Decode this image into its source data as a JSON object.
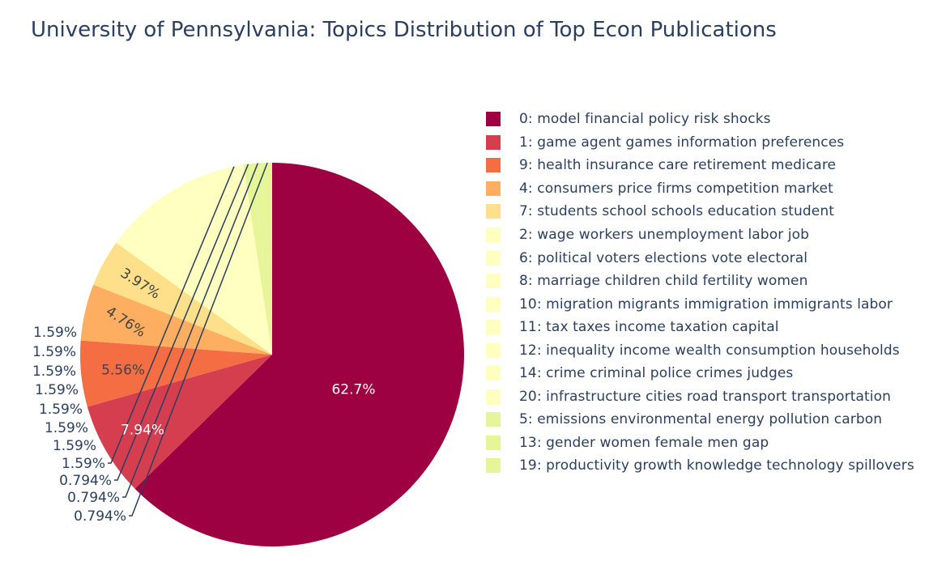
{
  "chart_data": {
    "type": "pie",
    "title": "University of Pennsylvania: Topics Distribution of Top Econ Publications",
    "slices": [
      {
        "label": "0: model financial policy risk shocks",
        "value": 62.7,
        "text": "62.7%",
        "color": "#9e0142"
      },
      {
        "label": "1: game agent games information preferences",
        "value": 7.94,
        "text": "7.94%",
        "color": "#d53e4f"
      },
      {
        "label": "9: health insurance care retirement medicare",
        "value": 5.56,
        "text": "5.56%",
        "color": "#f46d43"
      },
      {
        "label": "4: consumers price firms competition market",
        "value": 4.76,
        "text": "4.76%",
        "color": "#fdae61"
      },
      {
        "label": "7: students school schools education student",
        "value": 3.97,
        "text": "3.97%",
        "color": "#fee08b"
      },
      {
        "label": "2: wage workers unemployment labor job",
        "value": 1.59,
        "text": "1.59%",
        "color": "#ffffbf"
      },
      {
        "label": "6: political voters elections vote electoral",
        "value": 1.59,
        "text": "1.59%",
        "color": "#ffffbf"
      },
      {
        "label": "8: marriage children child fertility women",
        "value": 1.59,
        "text": "1.59%",
        "color": "#ffffbf"
      },
      {
        "label": "10: migration migrants immigration immigrants labor",
        "value": 1.59,
        "text": "1.59%",
        "color": "#ffffbf"
      },
      {
        "label": "11: tax taxes income taxation capital",
        "value": 1.59,
        "text": "1.59%",
        "color": "#ffffbf"
      },
      {
        "label": "12: inequality income wealth consumption households",
        "value": 1.59,
        "text": "1.59%",
        "color": "#ffffbf"
      },
      {
        "label": "14: crime criminal police crimes judges",
        "value": 1.59,
        "text": "1.59%",
        "color": "#ffffbf"
      },
      {
        "label": "20: infrastructure cities road transport transportation",
        "value": 1.59,
        "text": "1.59%",
        "color": "#ffffbf"
      },
      {
        "label": "5: emissions environmental energy pollution carbon",
        "value": 0.794,
        "text": "0.794%",
        "color": "#e6f598"
      },
      {
        "label": "13: gender women female men gap",
        "value": 0.794,
        "text": "0.794%",
        "color": "#e6f598"
      },
      {
        "label": "19: productivity growth knowledge technology spillovers",
        "value": 0.794,
        "text": "0.794%",
        "color": "#e6f598"
      }
    ],
    "direction": "clockwise",
    "legend_position": "right"
  }
}
